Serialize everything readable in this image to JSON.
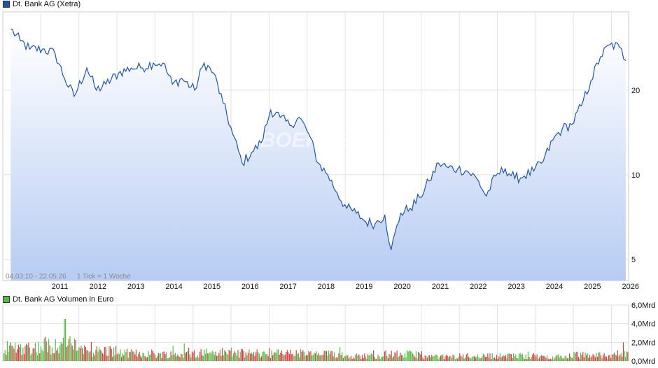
{
  "price_legend": {
    "label": "Dt. Bank AG (Xetra)",
    "color": "#2255aa"
  },
  "volume_legend": {
    "label": "Dt. Bank AG Volumen in Euro",
    "color": "#55bb44"
  },
  "range_note": "04.03.10 - 22.05.26",
  "tick_note": "1 Tick = 1 Woche",
  "watermark": "BOERSE.DE",
  "chart_data": [
    {
      "type": "area",
      "title": "Dt. Bank AG (Xetra)",
      "y_scale": "log",
      "ylim": [
        4.2,
        38
      ],
      "yticks": [
        5,
        10,
        20
      ],
      "ytick_labels": [
        "5",
        "10",
        "20"
      ],
      "xticks": [
        "2011",
        "2012",
        "2013",
        "2014",
        "2015",
        "2016",
        "2017",
        "2018",
        "2019",
        "2020",
        "2021",
        "2022",
        "2023",
        "2024",
        "2025",
        "2026"
      ],
      "grid": true,
      "x": [
        "2010-03",
        "2010-06",
        "2010-09",
        "2011-01",
        "2011-05",
        "2011-08",
        "2011-11",
        "2012-03",
        "2012-06",
        "2012-09",
        "2013-01",
        "2013-05",
        "2013-08",
        "2013-12",
        "2014-03",
        "2014-06",
        "2014-09",
        "2015-01",
        "2015-04",
        "2015-07",
        "2015-10",
        "2016-01",
        "2016-04",
        "2016-07",
        "2016-10",
        "2017-01",
        "2017-04",
        "2017-07",
        "2017-10",
        "2018-01",
        "2018-04",
        "2018-07",
        "2018-10",
        "2019-01",
        "2019-04",
        "2019-07",
        "2019-10",
        "2020-01",
        "2020-03",
        "2020-06",
        "2020-09",
        "2020-12",
        "2021-03",
        "2021-06",
        "2021-09",
        "2021-12",
        "2022-03",
        "2022-06",
        "2022-09",
        "2022-12",
        "2023-03",
        "2023-06",
        "2023-09",
        "2023-12",
        "2024-03",
        "2024-06",
        "2024-09",
        "2024-12",
        "2025-03",
        "2025-06",
        "2025-09",
        "2025-12",
        "2026-03",
        "2026-05"
      ],
      "values": [
        33,
        30,
        28,
        28,
        27,
        22,
        19,
        24,
        20,
        21,
        23,
        24,
        24,
        25,
        25,
        21,
        22,
        20,
        25,
        23,
        18,
        14,
        11,
        12,
        13,
        17,
        16,
        15,
        16,
        14,
        11,
        10,
        8.6,
        7.6,
        7.3,
        6.8,
        6.7,
        7.2,
        5.4,
        7.3,
        7.6,
        8.3,
        9.5,
        11,
        10.6,
        10.5,
        10.3,
        9.7,
        8.4,
        9.9,
        10.5,
        9.7,
        9.9,
        10.3,
        11.2,
        13.3,
        14.6,
        15.1,
        17.6,
        21.6,
        26.3,
        29.0,
        28.5,
        25.5
      ]
    },
    {
      "type": "bar",
      "title": "Dt. Bank AG Volumen in Euro",
      "ylim": [
        0,
        6
      ],
      "yticks": [
        0,
        2,
        4,
        6
      ],
      "ytick_labels": [
        "0,0Mrd",
        "2,0Mrd",
        "4,0Mrd",
        "6,0Mrd"
      ],
      "unit": "Mrd",
      "colors": {
        "up": "#55bb44",
        "down": "#cc4444"
      },
      "x": [
        "2010",
        "2011",
        "2012",
        "2013",
        "2014",
        "2015",
        "2016",
        "2017",
        "2018",
        "2019",
        "2020",
        "2021",
        "2022",
        "2023",
        "2024",
        "2025",
        "2026"
      ],
      "values": [
        1.6,
        1.9,
        1.2,
        0.9,
        0.8,
        1.0,
        0.9,
        0.9,
        0.8,
        0.6,
        0.8,
        0.5,
        0.6,
        0.6,
        0.5,
        0.7,
        0.8
      ],
      "peak": {
        "x": "2011-08",
        "value": 4.5
      }
    }
  ]
}
